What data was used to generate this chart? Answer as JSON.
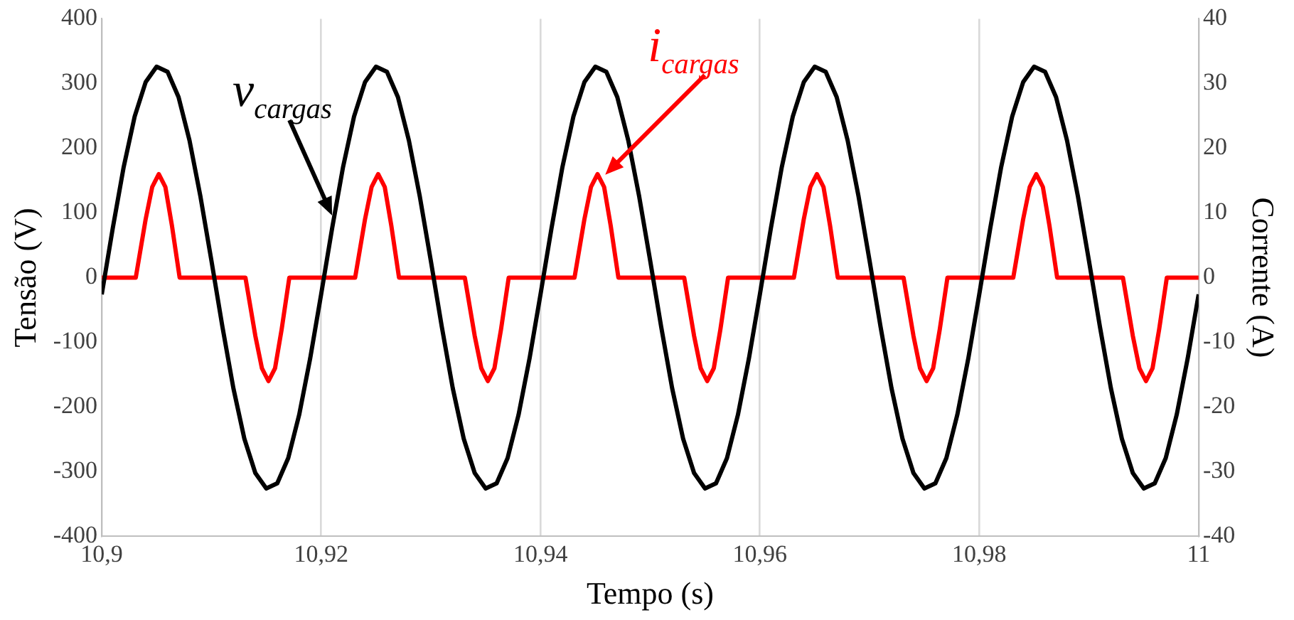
{
  "chart_data": {
    "type": "line",
    "xlabel": "Tempo (s)",
    "ylabel": "Tensão (V)",
    "y2label": "Corrente (A)",
    "xlim": [
      10.9,
      11
    ],
    "xticks": [
      {
        "value": 10.9,
        "label": "10,9"
      },
      {
        "value": 10.92,
        "label": "10,92"
      },
      {
        "value": 10.94,
        "label": "10,94"
      },
      {
        "value": 10.96,
        "label": "10,96"
      },
      {
        "value": 10.98,
        "label": "10,98"
      },
      {
        "value": 11,
        "label": "11"
      }
    ],
    "ylim": [
      -400,
      400
    ],
    "yticks": [
      -400,
      -300,
      -200,
      -100,
      0,
      100,
      200,
      300,
      400
    ],
    "y2lim": [
      -40,
      40
    ],
    "y2ticks": [
      -40,
      -30,
      -20,
      -10,
      0,
      10,
      20,
      30,
      40
    ],
    "grid": "x",
    "legend": false,
    "marker": "none",
    "line_style": "solid",
    "x": [
      10.9,
      10.901,
      10.902,
      10.903,
      10.904,
      10.905,
      10.906,
      10.907,
      10.908,
      10.909,
      10.91,
      10.911,
      10.912,
      10.913,
      10.914,
      10.915,
      10.916,
      10.917,
      10.918,
      10.919,
      10.92,
      10.921,
      10.922,
      10.923,
      10.924,
      10.925,
      10.926,
      10.927,
      10.928,
      10.929,
      10.93,
      10.931,
      10.932,
      10.933,
      10.934,
      10.935,
      10.936,
      10.937,
      10.938,
      10.939,
      10.94,
      10.941,
      10.942,
      10.943,
      10.944,
      10.945,
      10.946,
      10.947,
      10.948,
      10.949,
      10.95,
      10.951,
      10.952,
      10.953,
      10.954,
      10.955,
      10.956,
      10.957,
      10.958,
      10.959,
      10.96,
      10.961,
      10.962,
      10.963,
      10.964,
      10.965,
      10.966,
      10.967,
      10.968,
      10.969,
      10.97,
      10.971,
      10.972,
      10.973,
      10.974,
      10.975,
      10.976,
      10.977,
      10.978,
      10.979,
      10.98,
      10.981,
      10.982,
      10.983,
      10.984,
      10.985,
      10.986,
      10.987,
      10.988,
      10.989,
      10.99,
      10.991,
      10.992,
      10.993,
      10.994,
      10.995,
      10.996,
      10.997,
      10.998,
      10.999,
      11
    ],
    "series": [
      {
        "color": "#000000",
        "values": [
          -26,
          76,
          171,
          249,
          302,
          326,
          318,
          279,
          212,
          125,
          26,
          -76,
          -171,
          -249,
          -302,
          -326,
          -318,
          -279,
          -212,
          -125,
          -26,
          76,
          171,
          249,
          302,
          326,
          318,
          279,
          212,
          125,
          26,
          -76,
          -171,
          -249,
          -302,
          -326,
          -318,
          -279,
          -212,
          -125,
          -26,
          76,
          171,
          249,
          302,
          326,
          318,
          279,
          212,
          125,
          26,
          -76,
          -171,
          -249,
          -302,
          -326,
          -318,
          -279,
          -212,
          -125,
          -26,
          76,
          171,
          249,
          302,
          326,
          318,
          279,
          212,
          125,
          26,
          -76,
          -171,
          -249,
          -302,
          -326,
          -318,
          -279,
          -212,
          -125,
          -26,
          76,
          171,
          249,
          302,
          326,
          318,
          279,
          212,
          125,
          26,
          -76,
          -171,
          -249,
          -302,
          -326,
          -318,
          -279,
          -212,
          -125,
          -26
        ]
      },
      {
        "color": "#ff0000",
        "axis": "y2",
        "x": [
          10.9,
          10.9031,
          10.904,
          10.9046,
          10.9052,
          10.9058,
          10.9064,
          10.9071,
          10.9131,
          10.914,
          10.9146,
          10.9152,
          10.9158,
          10.9164,
          10.9171,
          10.9231,
          10.924,
          10.9246,
          10.9252,
          10.9258,
          10.9264,
          10.9271,
          10.9331,
          10.934,
          10.9346,
          10.9352,
          10.9358,
          10.9364,
          10.9371,
          10.9431,
          10.944,
          10.9446,
          10.9452,
          10.9458,
          10.9464,
          10.9471,
          10.9531,
          10.954,
          10.9546,
          10.9552,
          10.9558,
          10.9564,
          10.9571,
          10.9631,
          10.964,
          10.9646,
          10.9652,
          10.9658,
          10.9664,
          10.9671,
          10.9731,
          10.974,
          10.9746,
          10.9752,
          10.9758,
          10.9764,
          10.9771,
          10.9831,
          10.984,
          10.9846,
          10.9852,
          10.9858,
          10.9864,
          10.9871,
          10.9931,
          10.994,
          10.9946,
          10.9952,
          10.9958,
          10.9964,
          10.9971,
          11
        ],
        "values": [
          0,
          0,
          9,
          14,
          16,
          14,
          8,
          0,
          0,
          -9,
          -14,
          -16,
          -14,
          -8,
          0,
          0,
          9,
          14,
          16,
          14,
          8,
          0,
          0,
          -9,
          -14,
          -16,
          -14,
          -8,
          0,
          0,
          9,
          14,
          16,
          14,
          8,
          0,
          0,
          -9,
          -14,
          -16,
          -14,
          -8,
          0,
          0,
          9,
          14,
          16,
          14,
          8,
          0,
          0,
          -9,
          -14,
          -16,
          -14,
          -8,
          0,
          0,
          9,
          14,
          16,
          14,
          8,
          0,
          0,
          -9,
          -14,
          -16,
          -14,
          -8,
          0,
          0
        ]
      }
    ],
    "annotations": [
      {
        "text": "v$_{cargas}$",
        "x": 10.921,
        "y": 96
      },
      {
        "text": "i$_{cargas}$",
        "x": 10.9459,
        "y": 159
      }
    ]
  }
}
